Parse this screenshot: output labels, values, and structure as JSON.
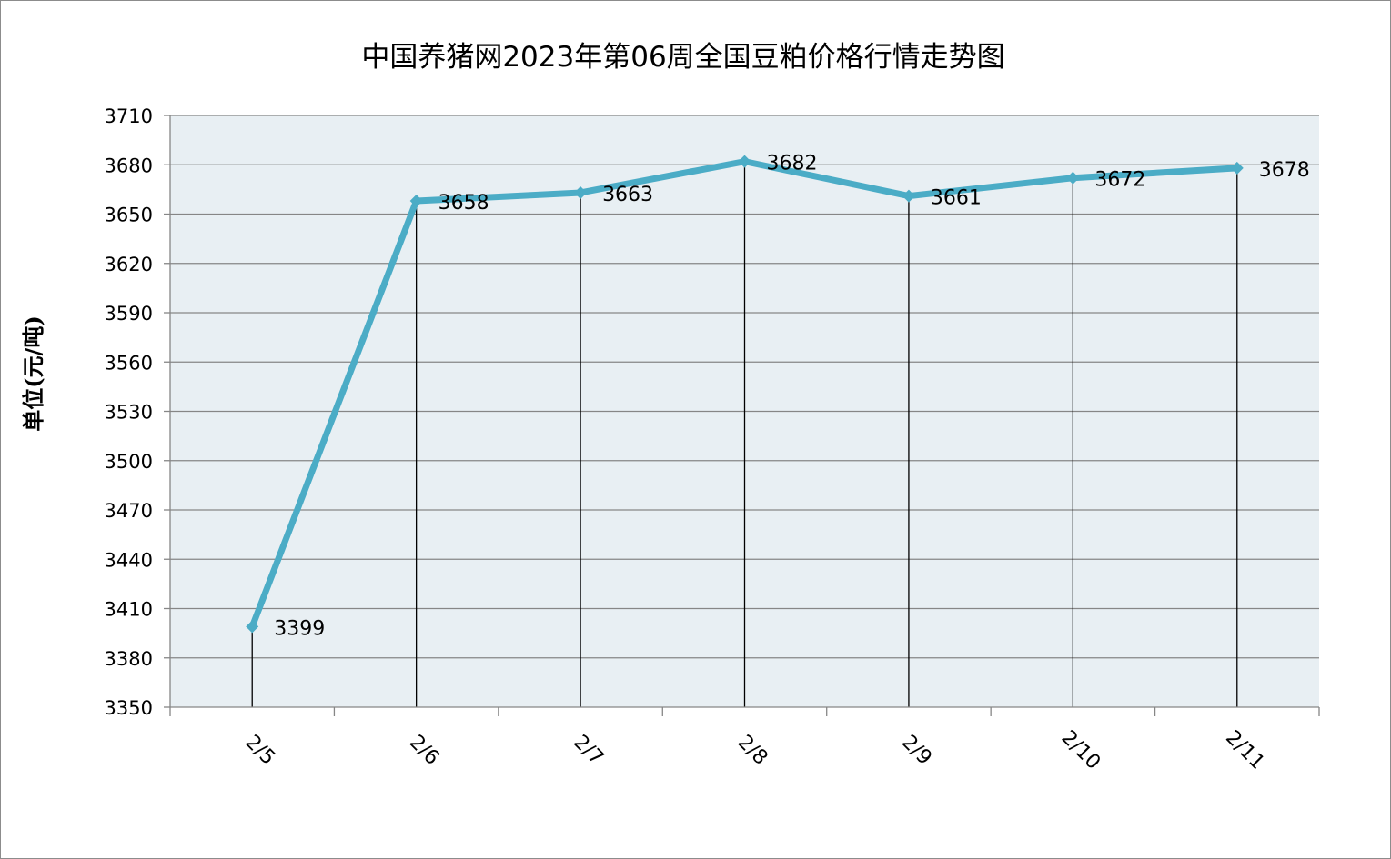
{
  "chart_data": {
    "type": "line",
    "title": "中国养猪网2023年第06周全国豆粕价格行情走势图",
    "ylabel": "单位(元/吨)",
    "xlabel": "",
    "categories": [
      "2/5",
      "2/6",
      "2/7",
      "2/8",
      "2/9",
      "2/10",
      "2/11"
    ],
    "series": [
      {
        "values": [
          3399,
          3658,
          3663,
          3682,
          3661,
          3672,
          3678
        ],
        "color": "#4BACC6"
      }
    ],
    "data_labels": [
      "3399",
      "3658",
      "3663",
      "3682",
      "3661",
      "3672",
      "3678"
    ],
    "ylim": [
      3350,
      3710
    ],
    "yticks": [
      3350,
      3380,
      3410,
      3440,
      3470,
      3500,
      3530,
      3560,
      3590,
      3620,
      3650,
      3680,
      3710
    ],
    "ytick_labels": [
      "3350",
      "3380",
      "3410",
      "3440",
      "3470",
      "3500",
      "3530",
      "3560",
      "3590",
      "3620",
      "3650",
      "3680",
      "3710"
    ],
    "grid": true,
    "drop_lines": true,
    "marker": "diamond",
    "legend": "none",
    "plot_background": "#E8EFF3"
  }
}
